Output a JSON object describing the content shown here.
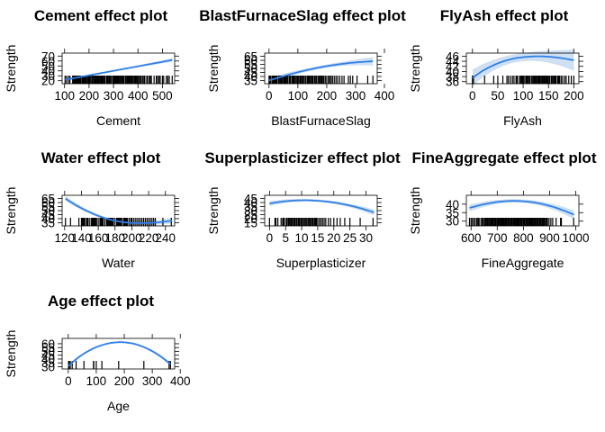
{
  "chart_data": [
    {
      "type": "line",
      "title": "Cement effect plot",
      "xlabel": "Cement",
      "ylabel": "Strength",
      "x_ticks": [
        100,
        200,
        300,
        400,
        500
      ],
      "y_ticks": [
        20,
        30,
        40,
        50,
        60,
        70
      ],
      "xlim": [
        90,
        550
      ],
      "ylim": [
        14,
        76
      ],
      "curve": {
        "x": [
          102,
          540
        ],
        "y": [
          22,
          62
        ]
      },
      "band_halfwidth": 1.5,
      "rug": [
        102,
        108,
        116,
        122,
        133,
        136,
        139,
        141,
        143,
        147,
        150,
        152,
        154,
        157,
        160,
        163,
        166,
        168,
        173,
        176,
        180,
        183,
        186,
        190,
        194,
        198,
        200,
        203,
        207,
        212,
        214,
        218,
        222,
        225,
        228,
        230,
        234,
        237,
        240,
        242,
        246,
        250,
        252,
        255,
        258,
        260,
        264,
        266,
        272,
        275,
        277,
        281,
        284,
        288,
        290,
        296,
        298,
        300,
        304,
        307,
        310,
        313,
        316,
        318,
        322,
        326,
        330,
        332,
        336,
        340,
        342,
        348,
        350,
        352,
        356,
        359,
        362,
        366,
        370,
        374,
        376,
        380,
        385,
        387,
        390,
        393,
        397,
        400,
        405,
        410,
        414,
        420,
        425,
        428,
        436,
        439,
        446,
        450,
        455,
        466,
        475,
        480,
        486,
        491,
        500,
        505,
        516,
        522,
        528,
        540
      ]
    },
    {
      "type": "line",
      "title": "BlastFurnaceSlag effect plot",
      "xlabel": "BlastFurnaceSlag",
      "ylabel": "Strength",
      "x_ticks": [
        0,
        100,
        200,
        300,
        400
      ],
      "y_ticks": [
        35,
        40,
        45,
        50,
        55,
        60,
        65
      ],
      "xlim": [
        -15,
        375
      ],
      "ylim": [
        31,
        69
      ],
      "curve": {
        "x": [
          0,
          40,
          80,
          120,
          160,
          200,
          240,
          280,
          320,
          360
        ],
        "y": [
          35.0,
          39.3,
          43.4,
          47.0,
          50.1,
          52.8,
          55.0,
          56.7,
          58.0,
          58.8
        ]
      },
      "band_halfwidth": 2.0,
      "rug": [
        0,
        3,
        6,
        11,
        14,
        17,
        20,
        22,
        24,
        26,
        28,
        33,
        37,
        40,
        42,
        45,
        48,
        52,
        55,
        58,
        62,
        65,
        70,
        72,
        75,
        80,
        83,
        86,
        90,
        94,
        98,
        100,
        104,
        108,
        112,
        114,
        118,
        120,
        125,
        128,
        133,
        136,
        140,
        143,
        147,
        150,
        153,
        158,
        162,
        165,
        170,
        174,
        176,
        180,
        183,
        187,
        190,
        195,
        200,
        206,
        210,
        215,
        220,
        226,
        232,
        238,
        245,
        253,
        260,
        275,
        282,
        290,
        305,
        342,
        360
      ]
    },
    {
      "type": "line",
      "title": "FlyAsh effect plot",
      "xlabel": "FlyAsh",
      "ylabel": "Strength",
      "x_ticks": [
        0,
        50,
        100,
        150,
        200
      ],
      "y_ticks": [
        36,
        38,
        40,
        42,
        44,
        46
      ],
      "xlim": [
        -12,
        210
      ],
      "ylim": [
        35.2,
        47.2
      ],
      "curve": {
        "x": [
          0,
          20,
          40,
          60,
          80,
          100,
          120,
          140,
          160,
          180,
          200
        ],
        "y": [
          37.5,
          40.2,
          42.3,
          43.9,
          45.0,
          45.6,
          45.9,
          45.9,
          45.6,
          45.1,
          44.4
        ]
      },
      "band_halfwidth": 1.6,
      "rug": [
        0,
        2,
        24,
        42,
        50,
        60,
        68,
        71,
        75,
        79,
        82,
        86,
        87,
        89,
        93,
        95,
        97,
        98,
        100,
        102,
        105,
        107,
        108,
        110,
        112,
        113,
        116,
        118,
        120,
        122,
        123,
        125,
        126,
        128,
        130,
        132,
        133,
        135,
        137,
        139,
        141,
        142,
        143,
        145,
        147,
        148,
        150,
        152,
        153,
        156,
        158,
        160,
        162,
        163,
        165,
        168,
        170,
        172,
        175,
        178,
        182,
        185,
        190,
        195,
        200
      ]
    },
    {
      "type": "line",
      "title": "Water effect plot",
      "xlabel": "Water",
      "ylabel": "Strength",
      "x_ticks": [
        120,
        140,
        160,
        180,
        200,
        220,
        240
      ],
      "y_ticks": [
        35,
        40,
        45,
        50,
        55,
        60,
        65
      ],
      "xlim": [
        117,
        251
      ],
      "ylim": [
        31,
        69
      ],
      "curve": {
        "x": [
          121,
          130,
          140,
          150,
          160,
          170,
          180,
          190,
          200,
          210,
          220,
          230,
          240,
          248
        ],
        "y": [
          65.0,
          58.9,
          53.0,
          47.9,
          43.5,
          40.0,
          37.4,
          35.6,
          34.6,
          34.3,
          34.6,
          35.3,
          36.4,
          37.5
        ]
      },
      "band_halfwidth": 1.5,
      "rug": [
        121,
        127,
        137,
        140,
        141,
        142,
        143,
        144,
        146,
        147,
        148,
        150,
        152,
        153,
        154,
        155,
        156,
        157,
        158,
        160,
        162,
        163,
        164,
        165,
        166,
        168,
        170,
        171,
        172,
        173,
        174,
        175,
        176,
        177,
        178,
        180,
        182,
        183,
        184,
        185,
        186,
        187,
        188,
        190,
        191,
        192,
        193,
        194,
        195,
        197,
        199,
        200,
        202,
        204,
        206,
        208,
        210,
        212,
        214,
        216,
        218,
        220,
        222,
        224,
        226,
        228,
        237,
        247
      ]
    },
    {
      "type": "line",
      "title": "Superplasticizer effect plot",
      "xlabel": "Superplasticizer",
      "ylabel": "Strength",
      "x_ticks": [
        0,
        5,
        10,
        15,
        20,
        25,
        30
      ],
      "y_ticks": [
        15,
        20,
        25,
        30,
        35,
        40,
        45
      ],
      "xlim": [
        -1.5,
        33.5
      ],
      "ylim": [
        11,
        49
      ],
      "curve": {
        "x": [
          0,
          3,
          6,
          9,
          12,
          15,
          18,
          21,
          24,
          27,
          30,
          32.5
        ],
        "y": [
          38.8,
          40.7,
          42.0,
          42.7,
          42.8,
          42.2,
          41.1,
          39.4,
          37.1,
          34.3,
          30.9,
          27.7
        ]
      },
      "band_halfwidth": 1.5,
      "rug": [
        0,
        1.7,
        2.0,
        2.6,
        3.6,
        4.1,
        4.4,
        4.6,
        5.2,
        5.5,
        5.9,
        6.1,
        6.4,
        6.7,
        7.0,
        7.2,
        7.6,
        7.8,
        8.0,
        8.4,
        8.6,
        9.0,
        9.3,
        9.7,
        9.9,
        10.2,
        10.6,
        10.9,
        11.3,
        11.6,
        12.0,
        12.3,
        12.6,
        13.0,
        13.3,
        13.6,
        14.0,
        14.3,
        14.6,
        15.0,
        15.5,
        16.0,
        16.5,
        17.0,
        17.5,
        18.3,
        19.0,
        20.0,
        21.0,
        22.0,
        23.4,
        25.0,
        28.2,
        32.2
      ]
    },
    {
      "type": "line",
      "title": "FineAggregate effect plot",
      "xlabel": "FineAggregate",
      "ylabel": "Strength",
      "x_ticks": [
        600,
        700,
        800,
        900,
        1000
      ],
      "y_ticks": [
        30,
        35,
        40
      ],
      "xlim": [
        582,
        1012
      ],
      "ylim": [
        27.2,
        45.2
      ],
      "curve": {
        "x": [
          594,
          640,
          680,
          720,
          760,
          800,
          840,
          880,
          920,
          960,
          993
        ],
        "y": [
          37.8,
          39.6,
          40.8,
          41.6,
          41.9,
          41.7,
          41.0,
          39.8,
          38.1,
          35.9,
          33.8
        ]
      },
      "band_halfwidth": 1.0,
      "rug": [
        594,
        600,
        605,
        611,
        613,
        620,
        624,
        628,
        633,
        640,
        643,
        647,
        652,
        656,
        660,
        663,
        667,
        670,
        674,
        677,
        680,
        683,
        686,
        690,
        693,
        696,
        700,
        703,
        706,
        710,
        713,
        716,
        720,
        723,
        726,
        730,
        733,
        736,
        740,
        743,
        746,
        750,
        753,
        756,
        760,
        763,
        766,
        770,
        773,
        776,
        780,
        783,
        786,
        790,
        793,
        796,
        800,
        803,
        806,
        810,
        813,
        816,
        820,
        823,
        826,
        830,
        833,
        836,
        840,
        843,
        846,
        850,
        853,
        856,
        860,
        863,
        866,
        870,
        873,
        876,
        880,
        884,
        888,
        892,
        898,
        905,
        912,
        925,
        942,
        945,
        992
      ]
    },
    {
      "type": "line",
      "title": "Age effect plot",
      "xlabel": "Age",
      "ylabel": "Strength",
      "x_ticks": [
        0,
        100,
        200,
        300,
        400
      ],
      "y_ticks": [
        30,
        35,
        40,
        45,
        50,
        55,
        60
      ],
      "xlim": [
        -22,
        380
      ],
      "ylim": [
        27,
        67
      ],
      "curve": {
        "x": [
          1,
          30,
          60,
          90,
          120,
          150,
          180,
          210,
          240,
          270,
          300,
          330,
          365
        ],
        "y": [
          31.0,
          40.4,
          48.0,
          53.9,
          58.2,
          60.9,
          62.0,
          61.5,
          59.4,
          55.6,
          50.3,
          43.4,
          33.3
        ]
      },
      "band_halfwidth": 0.9,
      "rug": [
        1,
        3,
        7,
        14,
        28,
        56,
        90,
        91,
        100,
        120,
        180,
        270,
        360,
        365
      ]
    }
  ]
}
